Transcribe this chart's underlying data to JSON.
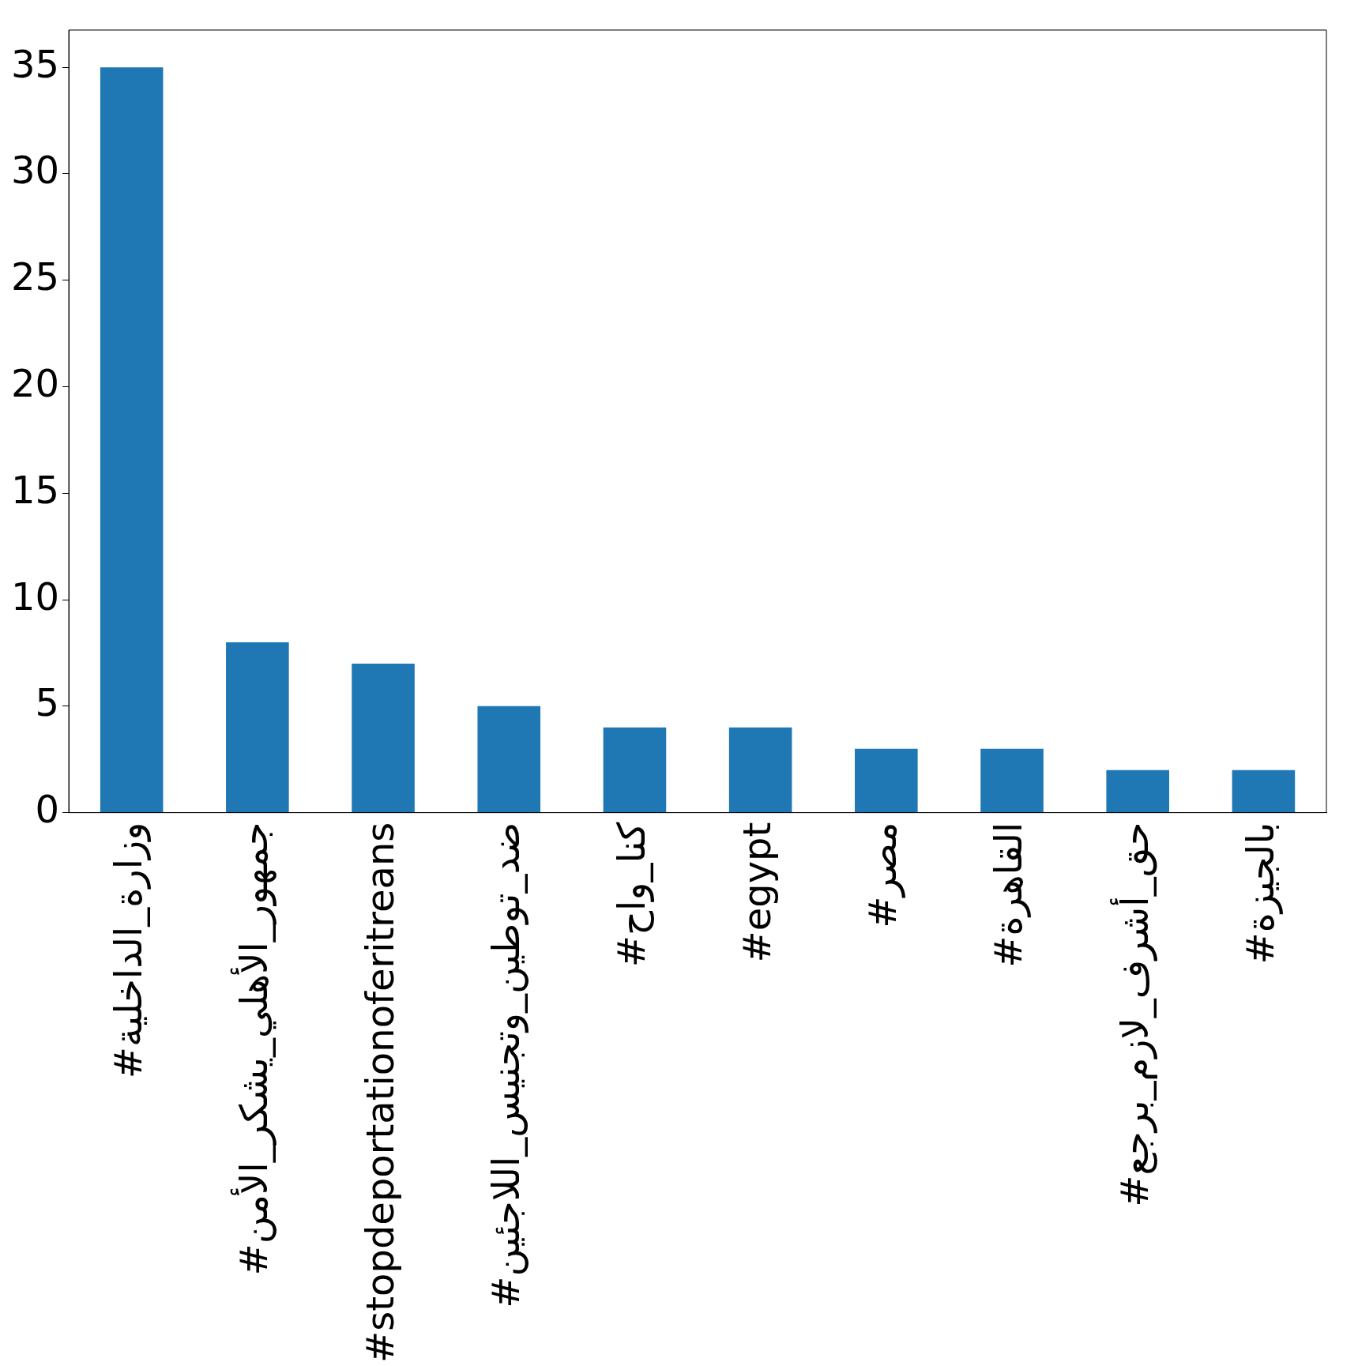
{
  "chart_data": {
    "type": "bar",
    "categories": [
      "#وزارة_الداخلية",
      "#جمهور_الأهلي_يشكر_الأمن",
      "#stopdeportationoferitreans",
      "#ضد_توطين_وتجنيس_اللاجئين",
      "#كنا_واح",
      "#egypt",
      "#مصر",
      "#القاهرة",
      "#حق_أشرف_لازم_برجع",
      "#بالجيزة"
    ],
    "values": [
      35,
      8,
      7,
      5,
      4,
      4,
      3,
      3,
      2,
      2
    ],
    "color": "#1f77b4",
    "ylim": [
      0,
      36.75
    ],
    "yticks": [
      0,
      5,
      10,
      15,
      20,
      25,
      30,
      35
    ],
    "grid": false,
    "legend": false
  }
}
